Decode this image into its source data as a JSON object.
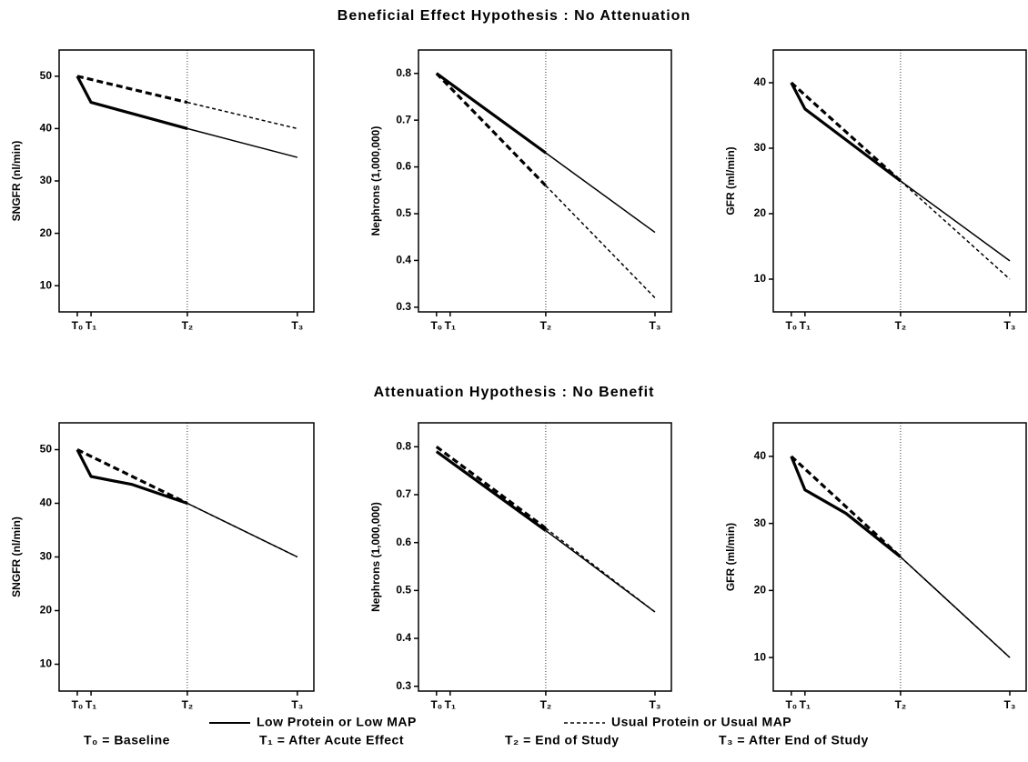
{
  "figure": {
    "row_titles": [
      "Beneficial Effect Hypothesis : No Attenuation",
      "Attenuation Hypothesis : No Benefit"
    ],
    "notes": [
      "T₀ = Baseline",
      "T₁ = After Acute Effect",
      "T₂ = End of Study",
      "T₃ = After End of Study"
    ]
  },
  "chart_data": [
    {
      "type": "line",
      "ylabel": "SNGFR (nl/min)",
      "xlim": [
        -0.33,
        4.3
      ],
      "ylim": [
        5,
        55
      ],
      "xticks": [
        {
          "value": 0,
          "label": "T₀"
        },
        {
          "value": 0.25,
          "label": "T₁"
        },
        {
          "value": 2,
          "label": "T₂"
        },
        {
          "value": 4,
          "label": "T₃"
        }
      ],
      "yticks": [
        10,
        20,
        30,
        40,
        50
      ],
      "vline": 2,
      "series": [
        {
          "name": "Low Protein or Low MAP",
          "style": "solid",
          "color": "#000",
          "x": [
            0,
            0.25,
            2,
            4
          ],
          "values": [
            50,
            45,
            40,
            34.5
          ]
        },
        {
          "name": "Usual Protein or Usual MAP",
          "style": "dashed",
          "color": "#000",
          "x": [
            0,
            2,
            4
          ],
          "values": [
            50,
            45,
            40
          ]
        }
      ]
    },
    {
      "type": "line",
      "ylabel": "Nephrons (1,000,000)",
      "xlim": [
        -0.33,
        4.3
      ],
      "ylim": [
        0.29,
        0.85
      ],
      "xticks": [
        {
          "value": 0,
          "label": "T₀"
        },
        {
          "value": 0.25,
          "label": "T₁"
        },
        {
          "value": 2,
          "label": "T₂"
        },
        {
          "value": 4,
          "label": "T₃"
        }
      ],
      "yticks": [
        0.3,
        0.4,
        0.5,
        0.6,
        0.7,
        0.8
      ],
      "vline": 2,
      "series": [
        {
          "name": "Low Protein or Low MAP",
          "style": "solid",
          "color": "#000",
          "x": [
            0,
            2,
            4
          ],
          "values": [
            0.8,
            0.63,
            0.46
          ]
        },
        {
          "name": "Usual Protein or Usual MAP",
          "style": "dashed",
          "color": "#000",
          "x": [
            0,
            2,
            4
          ],
          "values": [
            0.8,
            0.56,
            0.32
          ]
        }
      ]
    },
    {
      "type": "line",
      "ylabel": "GFR (ml/min)",
      "xlim": [
        -0.33,
        4.3
      ],
      "ylim": [
        5,
        45
      ],
      "xticks": [
        {
          "value": 0,
          "label": "T₀"
        },
        {
          "value": 0.25,
          "label": "T₁"
        },
        {
          "value": 2,
          "label": "T₂"
        },
        {
          "value": 4,
          "label": "T₃"
        }
      ],
      "yticks": [
        10,
        20,
        30,
        40
      ],
      "vline": 2,
      "series": [
        {
          "name": "Low Protein or Low MAP",
          "style": "solid",
          "color": "#000",
          "x": [
            0,
            0.25,
            2,
            4
          ],
          "values": [
            40,
            36,
            25,
            12.8
          ]
        },
        {
          "name": "Usual Protein or Usual MAP",
          "style": "dashed",
          "color": "#000",
          "x": [
            0,
            2,
            4
          ],
          "values": [
            40,
            25,
            10
          ]
        }
      ]
    },
    {
      "type": "line",
      "ylabel": "SNGFR (nl/min)",
      "xlim": [
        -0.33,
        4.3
      ],
      "ylim": [
        5,
        55
      ],
      "xticks": [
        {
          "value": 0,
          "label": "T₀"
        },
        {
          "value": 0.25,
          "label": "T₁"
        },
        {
          "value": 2,
          "label": "T₂"
        },
        {
          "value": 4,
          "label": "T₃"
        }
      ],
      "yticks": [
        10,
        20,
        30,
        40,
        50
      ],
      "vline": 2,
      "series": [
        {
          "name": "Low Protein or Low MAP",
          "style": "solid",
          "color": "#000",
          "x": [
            0,
            0.25,
            1,
            2,
            4
          ],
          "values": [
            50,
            45,
            43.5,
            40,
            30
          ]
        },
        {
          "name": "Usual Protein or Usual MAP",
          "style": "dashed",
          "color": "#000",
          "x": [
            0,
            2,
            4
          ],
          "values": [
            50,
            40,
            30
          ]
        }
      ]
    },
    {
      "type": "line",
      "ylabel": "Nephrons (1,000,000)",
      "xlim": [
        -0.33,
        4.3
      ],
      "ylim": [
        0.29,
        0.85
      ],
      "xticks": [
        {
          "value": 0,
          "label": "T₀"
        },
        {
          "value": 0.25,
          "label": "T₁"
        },
        {
          "value": 2,
          "label": "T₂"
        },
        {
          "value": 4,
          "label": "T₃"
        }
      ],
      "yticks": [
        0.3,
        0.4,
        0.5,
        0.6,
        0.7,
        0.8
      ],
      "vline": 2,
      "series": [
        {
          "name": "Low Protein or Low MAP",
          "style": "solid",
          "color": "#000",
          "x": [
            0,
            2,
            4
          ],
          "values": [
            0.79,
            0.625,
            0.455
          ]
        },
        {
          "name": "Usual Protein or Usual MAP",
          "style": "dashed",
          "color": "#000",
          "x": [
            0,
            2,
            4
          ],
          "values": [
            0.8,
            0.63,
            0.455
          ]
        }
      ]
    },
    {
      "type": "line",
      "ylabel": "GFR (ml/min)",
      "xlim": [
        -0.33,
        4.3
      ],
      "ylim": [
        5,
        45
      ],
      "xticks": [
        {
          "value": 0,
          "label": "T₀"
        },
        {
          "value": 0.25,
          "label": "T₁"
        },
        {
          "value": 2,
          "label": "T₂"
        },
        {
          "value": 4,
          "label": "T₃"
        }
      ],
      "yticks": [
        10,
        20,
        30,
        40
      ],
      "vline": 2,
      "series": [
        {
          "name": "Low Protein or Low MAP",
          "style": "solid",
          "color": "#000",
          "x": [
            0,
            0.25,
            1,
            2,
            4
          ],
          "values": [
            40,
            35,
            31.5,
            25,
            10
          ]
        },
        {
          "name": "Usual Protein or Usual MAP",
          "style": "dashed",
          "color": "#000",
          "x": [
            0,
            2,
            4
          ],
          "values": [
            40,
            25,
            10
          ]
        }
      ]
    }
  ]
}
